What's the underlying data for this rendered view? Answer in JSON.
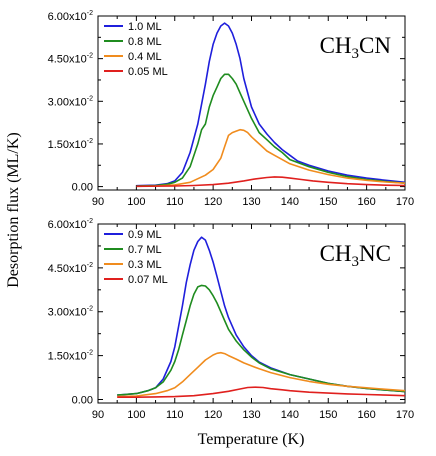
{
  "ylabel": "Desorption flux (ML/K)",
  "xlabel": "Temperature (K)",
  "chart_data": [
    {
      "type": "line",
      "label_prefix": "CH",
      "label_sub": "3",
      "label_suffix": "CN",
      "xlim": [
        90,
        170
      ],
      "ylim": [
        -0.0012,
        0.06
      ],
      "xticks": [
        "90",
        "100",
        "110",
        "120",
        "130",
        "140",
        "150",
        "160",
        "170"
      ],
      "yticks": [
        {
          "value": 0,
          "mantissa": "0.00",
          "exponent": ""
        },
        {
          "value": 0.015,
          "mantissa": "1.50x10",
          "exponent": "-2"
        },
        {
          "value": 0.03,
          "mantissa": "3.00x10",
          "exponent": "-2"
        },
        {
          "value": 0.045,
          "mantissa": "4.50x10",
          "exponent": "-2"
        },
        {
          "value": 0.06,
          "mantissa": "6.00x10",
          "exponent": "-2"
        }
      ],
      "legend_position": "top-left",
      "series": [
        {
          "name": "1.0 ML",
          "color": "#1f1fdc",
          "x": [
            100,
            105,
            108,
            110,
            112,
            114,
            116,
            118,
            119,
            120,
            121,
            122,
            123,
            124,
            125,
            126,
            127,
            128,
            130,
            132,
            134,
            136,
            138,
            140,
            142,
            145,
            150,
            155,
            160,
            165,
            170
          ],
          "y": [
            0.0003,
            0.0005,
            0.001,
            0.002,
            0.005,
            0.012,
            0.022,
            0.036,
            0.044,
            0.05,
            0.054,
            0.0565,
            0.0575,
            0.0565,
            0.054,
            0.05,
            0.045,
            0.038,
            0.028,
            0.022,
            0.0185,
            0.0155,
            0.013,
            0.011,
            0.009,
            0.0075,
            0.0055,
            0.004,
            0.003,
            0.0022,
            0.0015
          ]
        },
        {
          "name": "0.8 ML",
          "color": "#1f8c1f",
          "x": [
            100,
            105,
            108,
            110,
            112,
            114,
            116,
            117,
            118,
            119,
            120,
            121,
            122,
            123,
            124,
            125,
            126,
            127,
            128,
            130,
            132,
            134,
            136,
            138,
            140,
            145,
            150,
            155,
            160,
            165,
            170
          ],
          "y": [
            0.0002,
            0.0004,
            0.0008,
            0.0015,
            0.003,
            0.007,
            0.015,
            0.02,
            0.022,
            0.028,
            0.032,
            0.035,
            0.038,
            0.0395,
            0.0395,
            0.038,
            0.036,
            0.033,
            0.03,
            0.024,
            0.019,
            0.0165,
            0.014,
            0.012,
            0.0095,
            0.007,
            0.005,
            0.0035,
            0.0025,
            0.0018,
            0.0012
          ]
        },
        {
          "name": "0.4 ML",
          "color": "#f08c1e",
          "x": [
            100,
            105,
            110,
            114,
            118,
            120,
            122,
            123,
            124,
            125,
            126,
            127,
            128,
            129,
            130,
            132,
            134,
            136,
            138,
            140,
            145,
            150,
            155,
            160,
            165,
            170
          ],
          "y": [
            0.0001,
            0.0002,
            0.0006,
            0.0015,
            0.004,
            0.006,
            0.01,
            0.014,
            0.018,
            0.019,
            0.0195,
            0.02,
            0.0198,
            0.019,
            0.0175,
            0.015,
            0.0125,
            0.011,
            0.0095,
            0.008,
            0.0058,
            0.0042,
            0.003,
            0.0022,
            0.0016,
            0.0012
          ]
        },
        {
          "name": "0.05 ML",
          "color": "#e0201e",
          "x": [
            100,
            110,
            115,
            120,
            124,
            128,
            131,
            134,
            136,
            138,
            140,
            143,
            146,
            150,
            155,
            160,
            165,
            170
          ],
          "y": [
            0.0001,
            0.0002,
            0.0004,
            0.0007,
            0.0012,
            0.002,
            0.0027,
            0.0032,
            0.0034,
            0.0033,
            0.003,
            0.0025,
            0.002,
            0.0015,
            0.001,
            0.0007,
            0.0005,
            0.0004
          ]
        }
      ]
    },
    {
      "type": "line",
      "label_prefix": "CH",
      "label_sub": "3",
      "label_suffix": "NC",
      "xlim": [
        90,
        170
      ],
      "ylim": [
        -0.0012,
        0.06
      ],
      "xticks": [
        "90",
        "100",
        "110",
        "120",
        "130",
        "140",
        "150",
        "160",
        "170"
      ],
      "yticks": [
        {
          "value": 0,
          "mantissa": "0.00",
          "exponent": ""
        },
        {
          "value": 0.015,
          "mantissa": "1.50x10",
          "exponent": "-2"
        },
        {
          "value": 0.03,
          "mantissa": "3.00x10",
          "exponent": "-2"
        },
        {
          "value": 0.045,
          "mantissa": "4.50x10",
          "exponent": "-2"
        },
        {
          "value": 0.06,
          "mantissa": "6.00x10",
          "exponent": "-2"
        }
      ],
      "legend_position": "top-left",
      "series": [
        {
          "name": "0.9 ML",
          "color": "#1f1fdc",
          "x": [
            95,
            100,
            103,
            105,
            107,
            109,
            110,
            111,
            112,
            113,
            114,
            115,
            116,
            117,
            118,
            119,
            120,
            121,
            122,
            123,
            124,
            126,
            128,
            130,
            132,
            135,
            140,
            145,
            150,
            155,
            160,
            165,
            170
          ],
          "y": [
            0.0015,
            0.002,
            0.003,
            0.004,
            0.007,
            0.013,
            0.018,
            0.025,
            0.032,
            0.04,
            0.046,
            0.051,
            0.054,
            0.0555,
            0.0545,
            0.051,
            0.047,
            0.042,
            0.037,
            0.032,
            0.028,
            0.022,
            0.018,
            0.015,
            0.0128,
            0.0108,
            0.0085,
            0.007,
            0.0055,
            0.0045,
            0.0038,
            0.0032,
            0.0027
          ]
        },
        {
          "name": "0.7 ML",
          "color": "#1f8c1f",
          "x": [
            95,
            100,
            103,
            105,
            107,
            109,
            110,
            111,
            112,
            113,
            114,
            115,
            116,
            117,
            118,
            119,
            120,
            121,
            122,
            123,
            124,
            126,
            128,
            130,
            132,
            135,
            140,
            145,
            150,
            155,
            160,
            165,
            170
          ],
          "y": [
            0.0015,
            0.002,
            0.003,
            0.004,
            0.006,
            0.01,
            0.013,
            0.017,
            0.022,
            0.027,
            0.032,
            0.036,
            0.0385,
            0.039,
            0.0388,
            0.0375,
            0.0355,
            0.033,
            0.03,
            0.027,
            0.024,
            0.02,
            0.017,
            0.0145,
            0.0125,
            0.0105,
            0.0085,
            0.007,
            0.0055,
            0.0045,
            0.0038,
            0.0032,
            0.0027
          ]
        },
        {
          "name": "0.3 ML",
          "color": "#f08c1e",
          "x": [
            95,
            100,
            105,
            108,
            110,
            112,
            114,
            116,
            118,
            120,
            121,
            122,
            123,
            124,
            126,
            128,
            130,
            132,
            135,
            140,
            145,
            150,
            155,
            160,
            165,
            170
          ],
          "y": [
            0.001,
            0.0012,
            0.002,
            0.003,
            0.004,
            0.006,
            0.0085,
            0.011,
            0.0135,
            0.0152,
            0.0158,
            0.016,
            0.0157,
            0.015,
            0.0138,
            0.0125,
            0.0115,
            0.0105,
            0.0092,
            0.0075,
            0.0062,
            0.0052,
            0.0045,
            0.004,
            0.0035,
            0.003
          ]
        },
        {
          "name": "0.07 ML",
          "color": "#e0201e",
          "x": [
            95,
            100,
            105,
            110,
            115,
            120,
            124,
            127,
            129,
            131,
            133,
            135,
            138,
            140,
            145,
            150,
            155,
            160,
            165,
            170
          ],
          "y": [
            0.0008,
            0.0008,
            0.0009,
            0.001,
            0.0013,
            0.002,
            0.0028,
            0.0036,
            0.0041,
            0.0042,
            0.0041,
            0.0037,
            0.0033,
            0.003,
            0.0025,
            0.0022,
            0.0019,
            0.0017,
            0.0015,
            0.0013
          ]
        }
      ]
    }
  ]
}
